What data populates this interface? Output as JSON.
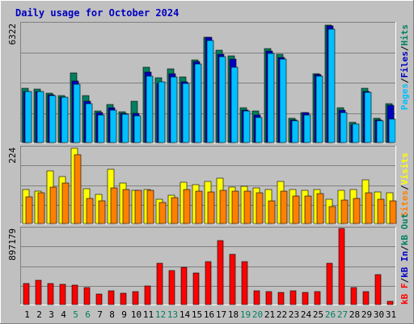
{
  "title": "Daily usage for October 2024",
  "colors": {
    "background": "#c0c0c0",
    "title": "#0000c0",
    "hits": "#008060",
    "files": "#0000c0",
    "pages": "#00c0ff",
    "visits": "#ffff00",
    "sites": "#ff8000",
    "kbin": "#0000c0",
    "kbout": "#008060",
    "kbf": "#ff0000",
    "weekend_day": "#008060",
    "weekday": "#000000"
  },
  "chart_data": [
    {
      "type": "bar",
      "panel": "top",
      "max_label": "6322",
      "ylim": [
        0,
        6322
      ],
      "legend": {
        "pages": "Pages",
        "files": "Files",
        "hits": "Hits",
        "sep": "/"
      },
      "categories": [
        "1",
        "2",
        "3",
        "4",
        "5",
        "6",
        "7",
        "8",
        "9",
        "10",
        "11",
        "12",
        "13",
        "14",
        "15",
        "16",
        "17",
        "18",
        "19",
        "20",
        "21",
        "22",
        "23",
        "24",
        "25",
        "26",
        "27",
        "28",
        "29",
        "30",
        "31"
      ],
      "series": [
        {
          "name": "Hits",
          "values": [
            2860,
            2830,
            2600,
            2470,
            3670,
            2470,
            1670,
            2000,
            1630,
            2180,
            3980,
            3420,
            3900,
            3480,
            4340,
            5570,
            4870,
            4560,
            1830,
            1670,
            4950,
            4650,
            1300,
            1600,
            3650,
            6200,
            1820,
            1070,
            2860,
            1300,
            2050
          ]
        },
        {
          "name": "Files",
          "values": [
            2700,
            2700,
            2530,
            2400,
            3240,
            2160,
            1570,
            1830,
            1550,
            1530,
            3710,
            3130,
            3630,
            3200,
            4290,
            5570,
            4650,
            4390,
            1730,
            1460,
            4820,
            4500,
            1200,
            1570,
            3590,
            6130,
            1730,
            950,
            2700,
            1200,
            1950
          ]
        },
        {
          "name": "Pages",
          "values": [
            2700,
            2700,
            2480,
            2380,
            3070,
            2030,
            1450,
            1700,
            1480,
            1420,
            3520,
            3200,
            3450,
            3130,
            4130,
            5380,
            4520,
            3960,
            1660,
            1330,
            4700,
            4380,
            1170,
            1450,
            3490,
            5970,
            1600,
            970,
            2650,
            1170,
            1220
          ]
        }
      ]
    },
    {
      "type": "bar",
      "panel": "middle",
      "max_label": "224",
      "ylim": [
        0,
        224
      ],
      "legend": {
        "visits": "Visits",
        "sites": "Sites",
        "sep": "/"
      },
      "categories": [
        "1",
        "2",
        "3",
        "4",
        "5",
        "6",
        "7",
        "8",
        "9",
        "10",
        "11",
        "12",
        "13",
        "14",
        "15",
        "16",
        "17",
        "18",
        "19",
        "20",
        "21",
        "22",
        "23",
        "24",
        "25",
        "26",
        "27",
        "28",
        "29",
        "30",
        "31"
      ],
      "series": [
        {
          "name": "Visits",
          "values": [
            99,
            94,
            153,
            136,
            220,
            101,
            86,
            158,
            119,
            96,
            98,
            71,
            83,
            120,
            113,
            123,
            131,
            107,
            108,
            104,
            99,
            122,
            98,
            97,
            98,
            71,
            96,
            100,
            128,
            93,
            89
          ]
        },
        {
          "name": "Sites",
          "values": [
            77,
            89,
            107,
            117,
            200,
            72,
            65,
            103,
            100,
            96,
            96,
            61,
            76,
            99,
            95,
            93,
            97,
            94,
            94,
            90,
            67,
            95,
            79,
            81,
            87,
            50,
            69,
            72,
            90,
            70,
            67
          ]
        }
      ]
    },
    {
      "type": "bar",
      "panel": "bottom",
      "max_label": "897179",
      "ylim": [
        0,
        897179
      ],
      "legend": {
        "kbf": "kB F",
        "kbin": "kB In",
        "kbout": "kB Out",
        "sep": "/"
      },
      "categories": [
        "1",
        "2",
        "3",
        "4",
        "5",
        "6",
        "7",
        "8",
        "9",
        "10",
        "11",
        "12",
        "13",
        "14",
        "15",
        "16",
        "17",
        "18",
        "19",
        "20",
        "21",
        "22",
        "23",
        "24",
        "25",
        "26",
        "27",
        "28",
        "29",
        "30",
        "31"
      ],
      "series": [
        {
          "name": "kB F",
          "values": [
            245000,
            280000,
            245000,
            235000,
            230000,
            195000,
            120000,
            160000,
            130000,
            150000,
            220000,
            480000,
            400000,
            430000,
            365000,
            505000,
            745000,
            590000,
            505000,
            160000,
            150000,
            140000,
            160000,
            145000,
            150000,
            480000,
            885000,
            200000,
            150000,
            345000,
            35000
          ]
        }
      ]
    }
  ],
  "x_labels": [
    {
      "text": "1",
      "weekend": false
    },
    {
      "text": "2",
      "weekend": false
    },
    {
      "text": "3",
      "weekend": false
    },
    {
      "text": "4",
      "weekend": false
    },
    {
      "text": "5",
      "weekend": true
    },
    {
      "text": "6",
      "weekend": true
    },
    {
      "text": "7",
      "weekend": false
    },
    {
      "text": "8",
      "weekend": false
    },
    {
      "text": "9",
      "weekend": false
    },
    {
      "text": "10",
      "weekend": false
    },
    {
      "text": "11",
      "weekend": false
    },
    {
      "text": "12",
      "weekend": true
    },
    {
      "text": "13",
      "weekend": true
    },
    {
      "text": "14",
      "weekend": false
    },
    {
      "text": "15",
      "weekend": false
    },
    {
      "text": "16",
      "weekend": false
    },
    {
      "text": "17",
      "weekend": false
    },
    {
      "text": "18",
      "weekend": false
    },
    {
      "text": "19",
      "weekend": true
    },
    {
      "text": "20",
      "weekend": true
    },
    {
      "text": "21",
      "weekend": false
    },
    {
      "text": "22",
      "weekend": false
    },
    {
      "text": "23",
      "weekend": false
    },
    {
      "text": "24",
      "weekend": false
    },
    {
      "text": "25",
      "weekend": false
    },
    {
      "text": "26",
      "weekend": true
    },
    {
      "text": "27",
      "weekend": true
    },
    {
      "text": "28",
      "weekend": false
    },
    {
      "text": "29",
      "weekend": false
    },
    {
      "text": "30",
      "weekend": false
    },
    {
      "text": "31",
      "weekend": false
    }
  ]
}
